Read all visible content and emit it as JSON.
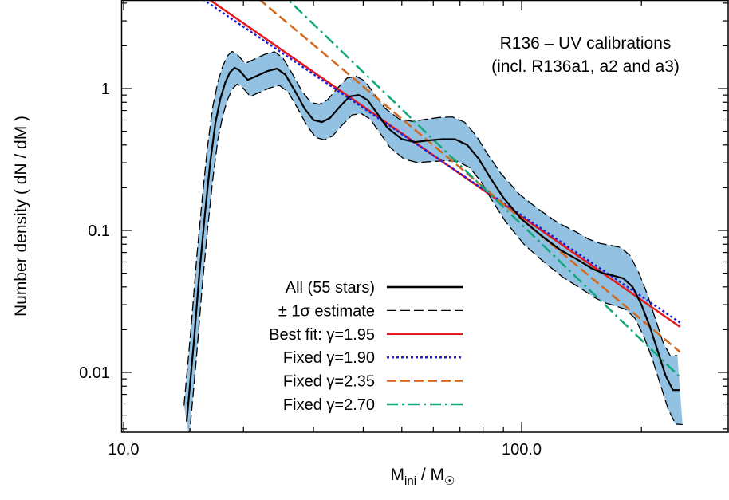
{
  "chart_data": {
    "type": "line",
    "xscale": "log",
    "yscale": "log",
    "xlim": [
      10,
      250
    ],
    "ylim": [
      0.0045,
      4
    ],
    "xticks": [
      {
        "value": 10,
        "label": "10.0"
      },
      {
        "value": 100,
        "label": "100.0"
      }
    ],
    "yticks": [
      {
        "value": 1,
        "label": "1"
      },
      {
        "value": 0.1,
        "label": "0.1"
      },
      {
        "value": 0.01,
        "label": "0.01"
      }
    ],
    "xlabel": {
      "main": "M",
      "sub": "ini",
      "sep": " / M",
      "sun": "☉"
    },
    "ylabel": "Number density ( dN / dM )",
    "annotation": [
      "R136 – UV calibrations",
      "(incl. R136a1, a2 and a3)"
    ],
    "legend_position": "bottom-center",
    "series": [
      {
        "name": "All (55 stars)",
        "color": "#000000",
        "style": "solid",
        "x": [
          14.4,
          15.0,
          15.5,
          16.0,
          16.5,
          17.0,
          17.5,
          18.0,
          18.5,
          19.0,
          19.5,
          20.5,
          21.5,
          23.0,
          24.3,
          25.5,
          27.0,
          28.5,
          30.0,
          31.5,
          33.0,
          35.0,
          37.0,
          39.0,
          41.0,
          43.0,
          46.0,
          50.0,
          54.0,
          58.0,
          63.0,
          68.0,
          73.0,
          78.0,
          83.0,
          90.0,
          100.0,
          112.0,
          125.0,
          140.0,
          150.0,
          160.0,
          170.0,
          180.0,
          190.0,
          200.0,
          210.0,
          220.0,
          230.0,
          240.0,
          250.0
        ],
        "y": [
          0.0045,
          0.016,
          0.05,
          0.13,
          0.3,
          0.57,
          0.85,
          1.1,
          1.3,
          1.4,
          1.35,
          1.15,
          1.22,
          1.33,
          1.38,
          1.25,
          0.95,
          0.72,
          0.6,
          0.58,
          0.62,
          0.75,
          0.88,
          0.9,
          0.83,
          0.69,
          0.53,
          0.44,
          0.42,
          0.43,
          0.44,
          0.44,
          0.4,
          0.32,
          0.24,
          0.17,
          0.12,
          0.092,
          0.073,
          0.061,
          0.054,
          0.05,
          0.048,
          0.046,
          0.04,
          0.03,
          0.021,
          0.014,
          0.0095,
          0.0075,
          0.0075
        ]
      },
      {
        "name": "± 1σ estimate",
        "color": "#000000",
        "style": "dashed",
        "band_color": "#7fb6dc"
      },
      {
        "name": "Best fit: γ=1.95",
        "color": "#e41a1c",
        "style": "solid",
        "slope": -1.95,
        "x": [
          10,
          250
        ],
        "y_at_100": 0.125
      },
      {
        "name": "Fixed γ=1.90",
        "color": "#1f1fdf",
        "style": "dotted",
        "slope": -1.9,
        "x": [
          10,
          250
        ],
        "y_at_100": 0.128
      },
      {
        "name": "Fixed γ=2.35",
        "color": "#d2691e",
        "style": "dashed",
        "slope": -2.35,
        "x": [
          10,
          250
        ],
        "y_at_100": 0.12
      },
      {
        "name": "Fixed γ=2.70",
        "color": "#12a77d",
        "style": "dashdot",
        "slope": -2.7,
        "x": [
          10,
          250
        ],
        "y_at_100": 0.11
      }
    ]
  }
}
